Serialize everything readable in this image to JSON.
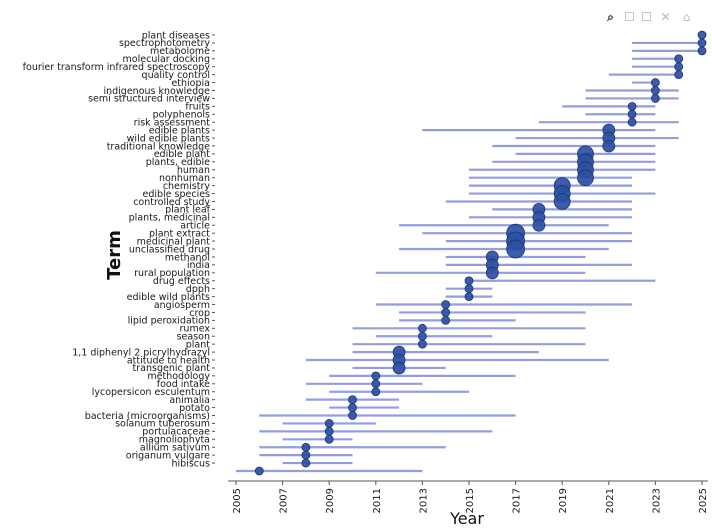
{
  "toolbar": {
    "icons": [
      "zoom-icon",
      "zoom-in-icon",
      "zoom-out-icon",
      "reset-icon",
      "home-icon"
    ]
  },
  "colors": {
    "bar": "#7f8ed6",
    "bubble": "#2d4fa3",
    "bubble_edge": "#1a326e",
    "axis": "#555555"
  },
  "chart_data": {
    "type": "scatter",
    "title": "",
    "xlabel": "Year",
    "ylabel": "Term",
    "xlim": [
      2005,
      2025
    ],
    "xticks": [
      2005,
      2007,
      2009,
      2011,
      2013,
      2015,
      2017,
      2019,
      2021,
      2023,
      2025
    ],
    "grid": false,
    "legend": "none",
    "terms": [
      {
        "term": "plant diseases",
        "start": 2025,
        "end": 2025,
        "peak": 2025,
        "weight": 1
      },
      {
        "term": "spectrophotometry",
        "start": 2022,
        "end": 2025,
        "peak": 2025,
        "weight": 1
      },
      {
        "term": "metabolome",
        "start": 2022,
        "end": 2025,
        "peak": 2025,
        "weight": 1
      },
      {
        "term": "molecular docking",
        "start": 2022,
        "end": 2024,
        "peak": 2024,
        "weight": 1
      },
      {
        "term": "fourier transform infrared spectroscopy",
        "start": 2022,
        "end": 2024,
        "peak": 2024,
        "weight": 1
      },
      {
        "term": "quality control",
        "start": 2021,
        "end": 2024,
        "peak": 2024,
        "weight": 1
      },
      {
        "term": "ethiopia",
        "start": 2022,
        "end": 2023,
        "peak": 2023,
        "weight": 1
      },
      {
        "term": "indigenous knowledge",
        "start": 2020,
        "end": 2024,
        "peak": 2023,
        "weight": 1
      },
      {
        "term": "semi structured interview",
        "start": 2020,
        "end": 2024,
        "peak": 2023,
        "weight": 1
      },
      {
        "term": "fruits",
        "start": 2019,
        "end": 2023,
        "peak": 2022,
        "weight": 1
      },
      {
        "term": "polyphenols",
        "start": 2020,
        "end": 2023,
        "peak": 2022,
        "weight": 1
      },
      {
        "term": "risk assessment",
        "start": 2018,
        "end": 2024,
        "peak": 2022,
        "weight": 1
      },
      {
        "term": "edible plants",
        "start": 2013,
        "end": 2023,
        "peak": 2021,
        "weight": 2
      },
      {
        "term": "wild edible plants",
        "start": 2017,
        "end": 2024,
        "peak": 2021,
        "weight": 2
      },
      {
        "term": "traditional knowledge",
        "start": 2016,
        "end": 2023,
        "peak": 2021,
        "weight": 2
      },
      {
        "term": "edible plant",
        "start": 2017,
        "end": 2023,
        "peak": 2020,
        "weight": 3
      },
      {
        "term": "plants, edible",
        "start": 2016,
        "end": 2023,
        "peak": 2020,
        "weight": 3
      },
      {
        "term": "human",
        "start": 2015,
        "end": 2023,
        "peak": 2020,
        "weight": 3
      },
      {
        "term": "nonhuman",
        "start": 2015,
        "end": 2022,
        "peak": 2020,
        "weight": 3
      },
      {
        "term": "chemistry",
        "start": 2015,
        "end": 2022,
        "peak": 2019,
        "weight": 3
      },
      {
        "term": "edible species",
        "start": 2015,
        "end": 2023,
        "peak": 2019,
        "weight": 3
      },
      {
        "term": "controlled study",
        "start": 2014,
        "end": 2022,
        "peak": 2019,
        "weight": 3
      },
      {
        "term": "plant leaf",
        "start": 2016,
        "end": 2022,
        "peak": 2018,
        "weight": 2
      },
      {
        "term": "plants, medicinal",
        "start": 2015,
        "end": 2022,
        "peak": 2018,
        "weight": 2
      },
      {
        "term": "article",
        "start": 2012,
        "end": 2021,
        "peak": 2018,
        "weight": 2
      },
      {
        "term": "plant extract",
        "start": 2013,
        "end": 2022,
        "peak": 2017,
        "weight": 4
      },
      {
        "term": "medicinal plant",
        "start": 2014,
        "end": 2022,
        "peak": 2017,
        "weight": 4
      },
      {
        "term": "unclassified drug",
        "start": 2012,
        "end": 2021,
        "peak": 2017,
        "weight": 4
      },
      {
        "term": "methanol",
        "start": 2014,
        "end": 2020,
        "peak": 2016,
        "weight": 2
      },
      {
        "term": "india",
        "start": 2014,
        "end": 2022,
        "peak": 2016,
        "weight": 2
      },
      {
        "term": "rural population",
        "start": 2011,
        "end": 2020,
        "peak": 2016,
        "weight": 2
      },
      {
        "term": "drug effects",
        "start": 2015,
        "end": 2023,
        "peak": 2015,
        "weight": 1
      },
      {
        "term": "dpph",
        "start": 2014,
        "end": 2016,
        "peak": 2015,
        "weight": 1
      },
      {
        "term": "edible wild plants",
        "start": 2014,
        "end": 2016,
        "peak": 2015,
        "weight": 1
      },
      {
        "term": "angiosperm",
        "start": 2011,
        "end": 2022,
        "peak": 2014,
        "weight": 1
      },
      {
        "term": "crop",
        "start": 2012,
        "end": 2020,
        "peak": 2014,
        "weight": 1
      },
      {
        "term": "lipid peroxidation",
        "start": 2012,
        "end": 2017,
        "peak": 2014,
        "weight": 1
      },
      {
        "term": "rumex",
        "start": 2010,
        "end": 2020,
        "peak": 2013,
        "weight": 1
      },
      {
        "term": "season",
        "start": 2011,
        "end": 2016,
        "peak": 2013,
        "weight": 1
      },
      {
        "term": "plant",
        "start": 2010,
        "end": 2020,
        "peak": 2013,
        "weight": 1
      },
      {
        "term": "1,1 diphenyl 2 picrylhydrazyl",
        "start": 2010,
        "end": 2018,
        "peak": 2012,
        "weight": 2
      },
      {
        "term": "attitude to health",
        "start": 2008,
        "end": 2021,
        "peak": 2012,
        "weight": 2
      },
      {
        "term": "transgenic plant",
        "start": 2010,
        "end": 2014,
        "peak": 2012,
        "weight": 2
      },
      {
        "term": "methodology",
        "start": 2009,
        "end": 2017,
        "peak": 2011,
        "weight": 1
      },
      {
        "term": "food intake",
        "start": 2008,
        "end": 2013,
        "peak": 2011,
        "weight": 1
      },
      {
        "term": "lycopersicon esculentum",
        "start": 2009,
        "end": 2015,
        "peak": 2011,
        "weight": 1
      },
      {
        "term": "animalia",
        "start": 2008,
        "end": 2012,
        "peak": 2010,
        "weight": 1
      },
      {
        "term": "potato",
        "start": 2009,
        "end": 2012,
        "peak": 2010,
        "weight": 1
      },
      {
        "term": "bacteria (microorganisms)",
        "start": 2006,
        "end": 2017,
        "peak": 2010,
        "weight": 1
      },
      {
        "term": "solanum tuberosum",
        "start": 2007,
        "end": 2011,
        "peak": 2009,
        "weight": 1
      },
      {
        "term": "portulacaceae",
        "start": 2006,
        "end": 2016,
        "peak": 2009,
        "weight": 1
      },
      {
        "term": "magnoliophyta",
        "start": 2007,
        "end": 2010,
        "peak": 2009,
        "weight": 1
      },
      {
        "term": "allium sativum",
        "start": 2006,
        "end": 2014,
        "peak": 2008,
        "weight": 1
      },
      {
        "term": "origanum vulgare",
        "start": 2006,
        "end": 2010,
        "peak": 2008,
        "weight": 1
      },
      {
        "term": "hibiscus",
        "start": 2007,
        "end": 2010,
        "peak": 2008,
        "weight": 1
      },
      {
        "term": "",
        "start": 2005,
        "end": 2013,
        "peak": 2006,
        "weight": 1
      }
    ]
  }
}
